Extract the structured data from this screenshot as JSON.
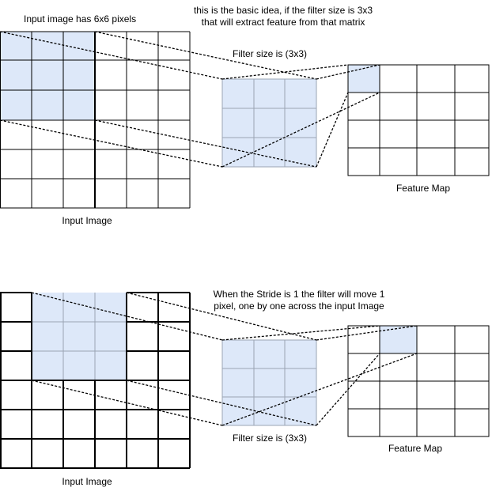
{
  "top": {
    "heading_line1": "Input image has 6x6 pixels",
    "note_line1": "this is the basic idea, if the filter size is 3x3",
    "note_line2": "that will extract feature from that matrix",
    "filter_label": "Filter size is (3x3)",
    "feature_label": "Feature Map",
    "input_label": "Input Image"
  },
  "bottom": {
    "note_line1": "When the Stride is 1 the filter will move 1",
    "note_line2": "pixel, one by one across the input Image",
    "filter_label": "Filter size is (3x3)",
    "feature_label": "Feature Map",
    "input_label": "Input Image"
  },
  "colors": {
    "highlight": "#dde8f9",
    "grid": "#000000"
  }
}
